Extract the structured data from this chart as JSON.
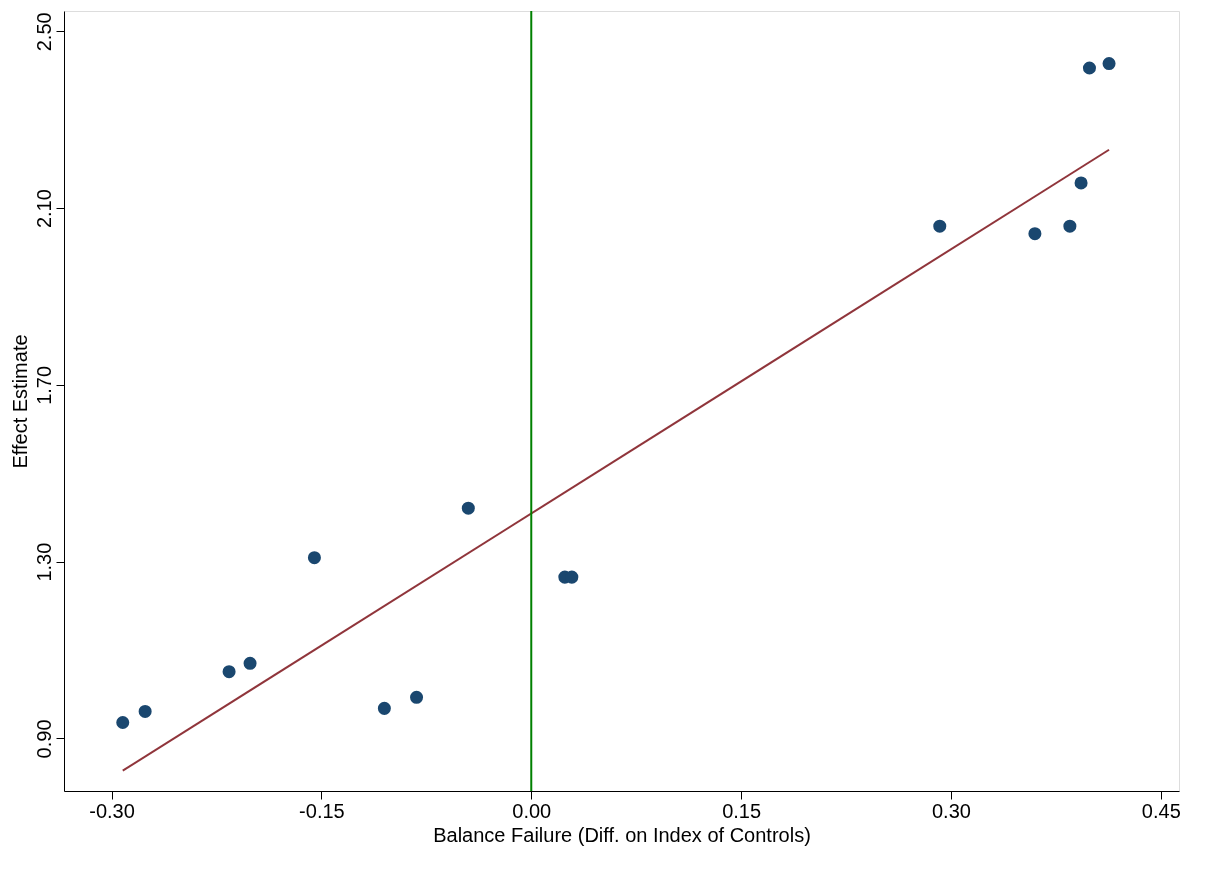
{
  "chart_data": {
    "type": "scatter",
    "xlabel": "Balance Failure (Diff. on Index of Controls)",
    "ylabel": "Effect Estimate",
    "xlim": [
      -0.334,
      0.463
    ],
    "ylim": [
      0.781,
      2.546
    ],
    "xticks": [
      {
        "value": -0.3,
        "label": "-0.30"
      },
      {
        "value": -0.15,
        "label": "-0.15"
      },
      {
        "value": 0,
        "label": "0.00"
      },
      {
        "value": 0.15,
        "label": "0.15"
      },
      {
        "value": 0.3,
        "label": "0.30"
      },
      {
        "value": 0.45,
        "label": "0.45"
      }
    ],
    "yticks": [
      {
        "value": 0.9,
        "label": "0.90"
      },
      {
        "value": 1.3,
        "label": "1.30"
      },
      {
        "value": 1.7,
        "label": "1.70"
      },
      {
        "value": 2.1,
        "label": "2.10"
      },
      {
        "value": 2.5,
        "label": "2.50"
      }
    ],
    "grid": false,
    "series": [
      {
        "color": "#1a476f",
        "marker": "circle",
        "x": [
          -0.292,
          -0.276,
          -0.216,
          -0.201,
          -0.155,
          -0.105,
          -0.082,
          -0.045,
          0.024,
          0.029,
          0.292,
          0.36,
          0.385,
          0.393,
          0.399,
          0.413
        ],
        "values": [
          0.936,
          0.961,
          1.051,
          1.07,
          1.309,
          0.968,
          0.993,
          1.421,
          1.265,
          1.265,
          2.059,
          2.042,
          2.059,
          2.157,
          2.417,
          2.427
        ]
      },
      {
        "type": "line",
        "color": "#90353b",
        "line_style": "solid",
        "x": [
          -0.292,
          0.413
        ],
        "values": [
          0.827,
          2.232
        ]
      }
    ],
    "ref_lines": [
      {
        "axis": "x",
        "value": 0,
        "color": "#008000"
      }
    ]
  }
}
